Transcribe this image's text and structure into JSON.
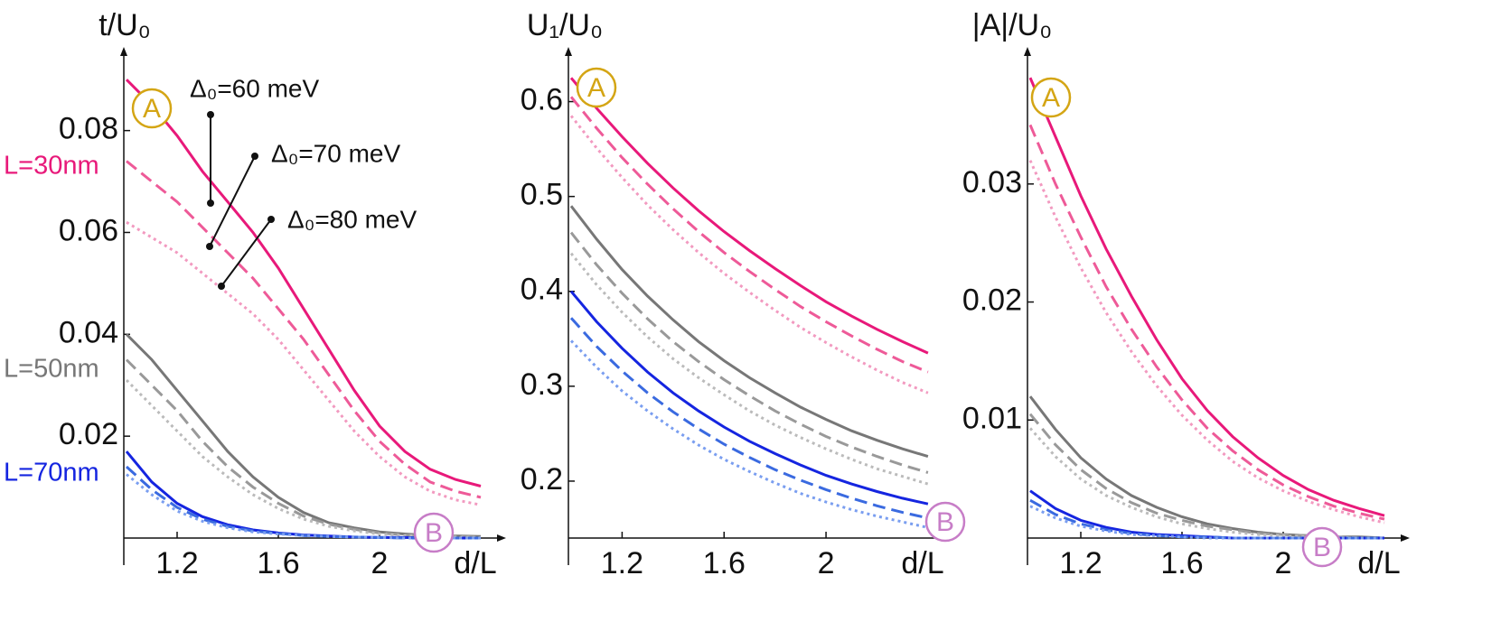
{
  "chart_data": [
    {
      "type": "line",
      "ylabel": "t/U₀",
      "xlabel": "d/L",
      "x": [
        1.0,
        1.1,
        1.2,
        1.3,
        1.4,
        1.5,
        1.6,
        1.7,
        1.8,
        1.9,
        2.0,
        2.1,
        2.2,
        2.3,
        2.4
      ],
      "xlim": [
        1,
        2.45
      ],
      "xticks": [
        1.2,
        1.6,
        2
      ],
      "ylim": [
        0,
        0.095
      ],
      "yticks": [
        0.02,
        0.04,
        0.06,
        0.08
      ],
      "markers": [
        "A",
        "B"
      ],
      "group_labels": [
        {
          "text": "L=30nm",
          "color": "#e8197a"
        },
        {
          "text": "L=50nm",
          "color": "#777777"
        },
        {
          "text": "L=70nm",
          "color": "#1525e0"
        }
      ],
      "annotations": [
        "Δ₀=60 meV",
        "Δ₀=70 meV",
        "Δ₀=80 meV"
      ],
      "series": [
        {
          "color": "#e8197a",
          "style": "solid",
          "values": [
            0.09,
            0.085,
            0.079,
            0.072,
            0.066,
            0.06,
            0.053,
            0.045,
            0.037,
            0.029,
            0.022,
            0.017,
            0.0135,
            0.0115,
            0.0102
          ]
        },
        {
          "color": "#ee5a98",
          "style": "dashed",
          "values": [
            0.074,
            0.07,
            0.066,
            0.061,
            0.056,
            0.051,
            0.045,
            0.039,
            0.032,
            0.025,
            0.019,
            0.0145,
            0.011,
            0.0092,
            0.008
          ]
        },
        {
          "color": "#f29ac0",
          "style": "dotted",
          "values": [
            0.062,
            0.059,
            0.056,
            0.052,
            0.048,
            0.044,
            0.039,
            0.033,
            0.027,
            0.021,
            0.016,
            0.012,
            0.0092,
            0.0075,
            0.0065
          ]
        },
        {
          "color": "#777777",
          "style": "solid",
          "values": [
            0.04,
            0.035,
            0.029,
            0.023,
            0.017,
            0.012,
            0.008,
            0.005,
            0.003,
            0.002,
            0.0012,
            0.0008,
            0.0005,
            0.0004,
            0.0003
          ]
        },
        {
          "color": "#999999",
          "style": "dashed",
          "values": [
            0.035,
            0.03,
            0.025,
            0.019,
            0.014,
            0.01,
            0.0068,
            0.0043,
            0.0027,
            0.0017,
            0.001,
            0.0006,
            0.0004,
            0.0003,
            0.0002
          ]
        },
        {
          "color": "#bbbbbb",
          "style": "dotted",
          "values": [
            0.031,
            0.026,
            0.021,
            0.016,
            0.012,
            0.0085,
            0.0058,
            0.0037,
            0.0023,
            0.0014,
            0.0008,
            0.0005,
            0.0003,
            0.0002,
            0.0001
          ]
        },
        {
          "color": "#1525e0",
          "style": "solid",
          "values": [
            0.017,
            0.011,
            0.0068,
            0.0042,
            0.0026,
            0.0016,
            0.001,
            0.0006,
            0.0004,
            0.0002,
            0.0001,
            0.0001,
            0,
            0,
            0
          ]
        },
        {
          "color": "#3a6ae0",
          "style": "dashed",
          "values": [
            0.014,
            0.0095,
            0.006,
            0.0037,
            0.0023,
            0.0014,
            0.0009,
            0.0005,
            0.0003,
            0.0002,
            0.0001,
            0,
            0,
            0,
            0
          ]
        },
        {
          "color": "#7a9ef0",
          "style": "dotted",
          "values": [
            0.0125,
            0.0085,
            0.0053,
            0.0033,
            0.002,
            0.0012,
            0.0008,
            0.0005,
            0.0003,
            0.0002,
            0.0001,
            0,
            0,
            0,
            0
          ]
        }
      ]
    },
    {
      "type": "line",
      "ylabel": "U₁/U₀",
      "xlabel": "d/L",
      "x": [
        1.0,
        1.1,
        1.2,
        1.3,
        1.4,
        1.5,
        1.6,
        1.7,
        1.8,
        1.9,
        2.0,
        2.1,
        2.2,
        2.3,
        2.4
      ],
      "xlim": [
        1,
        2.45
      ],
      "xticks": [
        1.2,
        1.6,
        2
      ],
      "ylim": [
        0.14,
        0.65
      ],
      "yticks": [
        0.2,
        0.3,
        0.4,
        0.5,
        0.6
      ],
      "markers": [
        "A",
        "B"
      ],
      "series": [
        {
          "color": "#e8197a",
          "style": "solid",
          "values": [
            0.625,
            0.593,
            0.563,
            0.535,
            0.509,
            0.485,
            0.463,
            0.443,
            0.424,
            0.406,
            0.389,
            0.374,
            0.36,
            0.347,
            0.335
          ]
        },
        {
          "color": "#ee5a98",
          "style": "dashed",
          "values": [
            0.605,
            0.572,
            0.541,
            0.513,
            0.487,
            0.463,
            0.441,
            0.421,
            0.402,
            0.384,
            0.368,
            0.353,
            0.339,
            0.326,
            0.315
          ]
        },
        {
          "color": "#f29ac0",
          "style": "dotted",
          "values": [
            0.585,
            0.551,
            0.52,
            0.491,
            0.465,
            0.441,
            0.419,
            0.399,
            0.38,
            0.362,
            0.346,
            0.331,
            0.317,
            0.304,
            0.293
          ]
        },
        {
          "color": "#777777",
          "style": "solid",
          "values": [
            0.49,
            0.455,
            0.423,
            0.395,
            0.37,
            0.347,
            0.327,
            0.309,
            0.293,
            0.278,
            0.265,
            0.253,
            0.243,
            0.234,
            0.226
          ]
        },
        {
          "color": "#999999",
          "style": "dashed",
          "values": [
            0.462,
            0.428,
            0.398,
            0.371,
            0.347,
            0.326,
            0.307,
            0.29,
            0.274,
            0.26,
            0.247,
            0.236,
            0.226,
            0.217,
            0.209
          ]
        },
        {
          "color": "#bbbbbb",
          "style": "dotted",
          "values": [
            0.44,
            0.407,
            0.378,
            0.352,
            0.329,
            0.309,
            0.291,
            0.274,
            0.259,
            0.246,
            0.234,
            0.223,
            0.213,
            0.205,
            0.197
          ]
        },
        {
          "color": "#1525e0",
          "style": "solid",
          "values": [
            0.4,
            0.368,
            0.34,
            0.315,
            0.293,
            0.274,
            0.257,
            0.242,
            0.229,
            0.217,
            0.206,
            0.197,
            0.189,
            0.182,
            0.176
          ]
        },
        {
          "color": "#3a6ae0",
          "style": "dashed",
          "values": [
            0.372,
            0.342,
            0.316,
            0.293,
            0.273,
            0.255,
            0.239,
            0.225,
            0.212,
            0.201,
            0.191,
            0.182,
            0.174,
            0.167,
            0.161
          ]
        },
        {
          "color": "#7a9ef0",
          "style": "dotted",
          "values": [
            0.348,
            0.32,
            0.295,
            0.274,
            0.255,
            0.238,
            0.223,
            0.21,
            0.198,
            0.187,
            0.178,
            0.17,
            0.163,
            0.157,
            0.151
          ]
        }
      ]
    },
    {
      "type": "line",
      "ylabel": "|A|/U₀",
      "xlabel": "d/L",
      "x": [
        1.0,
        1.1,
        1.2,
        1.3,
        1.4,
        1.5,
        1.6,
        1.7,
        1.8,
        1.9,
        2.0,
        2.1,
        2.2,
        2.3,
        2.4
      ],
      "xlim": [
        1,
        2.45
      ],
      "xticks": [
        1.2,
        1.6,
        2
      ],
      "ylim": [
        0,
        0.041
      ],
      "yticks": [
        0.01,
        0.02,
        0.03
      ],
      "markers": [
        "A",
        "B"
      ],
      "series": [
        {
          "color": "#e8197a",
          "style": "solid",
          "values": [
            0.039,
            0.034,
            0.029,
            0.0245,
            0.0205,
            0.0168,
            0.0135,
            0.0108,
            0.0086,
            0.0068,
            0.0053,
            0.0041,
            0.0032,
            0.0025,
            0.0019
          ]
        },
        {
          "color": "#ee5a98",
          "style": "dashed",
          "values": [
            0.035,
            0.03,
            0.0255,
            0.0213,
            0.0177,
            0.0145,
            0.0117,
            0.0093,
            0.0074,
            0.0058,
            0.0045,
            0.0035,
            0.0027,
            0.0021,
            0.0016
          ]
        },
        {
          "color": "#f29ac0",
          "style": "dotted",
          "values": [
            0.032,
            0.0272,
            0.0229,
            0.0191,
            0.0158,
            0.0129,
            0.0104,
            0.0083,
            0.0065,
            0.0051,
            0.004,
            0.0031,
            0.0024,
            0.0018,
            0.0013
          ]
        },
        {
          "color": "#777777",
          "style": "solid",
          "values": [
            0.012,
            0.0092,
            0.0068,
            0.005,
            0.0036,
            0.0026,
            0.0018,
            0.0012,
            0.0008,
            0.0005,
            0.0003,
            0.0002,
            0.0001,
            0.0001,
            0
          ]
        },
        {
          "color": "#999999",
          "style": "dashed",
          "values": [
            0.0105,
            0.0079,
            0.0058,
            0.0042,
            0.003,
            0.0021,
            0.0015,
            0.001,
            0.0007,
            0.0004,
            0.0003,
            0.0002,
            0.0001,
            0,
            0
          ]
        },
        {
          "color": "#bbbbbb",
          "style": "dotted",
          "values": [
            0.0093,
            0.0069,
            0.005,
            0.0036,
            0.0026,
            0.0018,
            0.0012,
            0.0008,
            0.0005,
            0.0003,
            0.0002,
            0.0001,
            0.0001,
            0,
            0
          ]
        },
        {
          "color": "#1525e0",
          "style": "solid",
          "values": [
            0.004,
            0.0025,
            0.0015,
            0.0009,
            0.0005,
            0.0003,
            0.0002,
            0.0001,
            0,
            0,
            0,
            0,
            0,
            0,
            0
          ]
        },
        {
          "color": "#3a6ae0",
          "style": "dashed",
          "values": [
            0.0032,
            0.002,
            0.0012,
            0.0007,
            0.0004,
            0.0002,
            0.0001,
            0.0001,
            0,
            0,
            0,
            0,
            0,
            0,
            0
          ]
        },
        {
          "color": "#7a9ef0",
          "style": "dotted",
          "values": [
            0.0027,
            0.0017,
            0.001,
            0.0006,
            0.0003,
            0.0002,
            0.0001,
            0,
            0,
            0,
            0,
            0,
            0,
            0,
            0
          ]
        }
      ]
    }
  ]
}
